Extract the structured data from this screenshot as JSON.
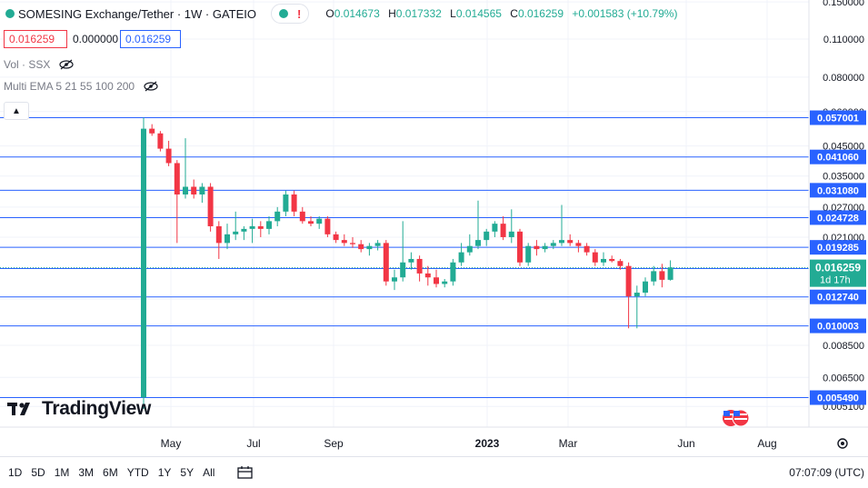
{
  "header": {
    "symbol": "SOMESING Exchange/Tether · 1W · GATEIO",
    "alert_icon": "!",
    "ohlc": {
      "o_label": "O",
      "o": "0.014673",
      "h_label": "H",
      "h": "0.017332",
      "l_label": "L",
      "l": "0.014565",
      "c_label": "C",
      "c": "0.016259",
      "change": "+0.001583 (+10.79%)"
    }
  },
  "price_boxes": {
    "sell": "0.016259",
    "spread": "0.000000",
    "buy": "0.016259"
  },
  "indicators": {
    "volume": "Vol · SSX",
    "ema": "Multi EMA 5 21 55 100 200"
  },
  "brand": "TradingView",
  "bottom_bar": {
    "ranges": [
      "1D",
      "5D",
      "1M",
      "3M",
      "6M",
      "YTD",
      "1Y",
      "5Y",
      "All"
    ],
    "clock": "07:07:09 (UTC)"
  },
  "colors": {
    "up": "#22ab94",
    "down": "#f23645",
    "hline": "#2962ff",
    "axis_label_bg": "#2962ff"
  },
  "chart_data": {
    "type": "candlestick",
    "scale": "log",
    "y_axis_ticks": [
      "0.150000",
      "0.110000",
      "0.080000",
      "0.060000",
      "0.045000",
      "0.035000",
      "0.027000",
      "0.021000",
      "0.016250",
      "0.012500",
      "0.008500",
      "0.006500",
      "0.005100"
    ],
    "x_axis_labels": [
      "May",
      "Jul",
      "Sep",
      "2023",
      "Mar",
      "Jun",
      "Aug"
    ],
    "horizontal_lines": [
      "0.057001",
      "0.041060",
      "0.031080",
      "0.024728",
      "0.019285",
      "0.016156",
      "0.012740",
      "0.010003",
      "0.005490"
    ],
    "current_price": "0.016259",
    "countdown": "1d 17h",
    "candles": [
      [
        0.0055,
        0.057,
        0.005,
        0.052
      ],
      [
        0.052,
        0.054,
        0.049,
        0.05
      ],
      [
        0.05,
        0.051,
        0.043,
        0.044
      ],
      [
        0.044,
        0.047,
        0.038,
        0.039
      ],
      [
        0.039,
        0.04,
        0.02,
        0.03
      ],
      [
        0.03,
        0.048,
        0.029,
        0.032
      ],
      [
        0.032,
        0.034,
        0.029,
        0.03
      ],
      [
        0.03,
        0.033,
        0.028,
        0.032
      ],
      [
        0.032,
        0.033,
        0.022,
        0.023
      ],
      [
        0.023,
        0.024,
        0.0175,
        0.02
      ],
      [
        0.02,
        0.0235,
        0.019,
        0.0215
      ],
      [
        0.0215,
        0.026,
        0.0205,
        0.022
      ],
      [
        0.022,
        0.023,
        0.0205,
        0.0225
      ],
      [
        0.0225,
        0.0245,
        0.02,
        0.023
      ],
      [
        0.023,
        0.024,
        0.021,
        0.0225
      ],
      [
        0.0225,
        0.025,
        0.0215,
        0.024
      ],
      [
        0.024,
        0.027,
        0.023,
        0.026
      ],
      [
        0.026,
        0.031,
        0.025,
        0.03
      ],
      [
        0.03,
        0.031,
        0.025,
        0.026
      ],
      [
        0.026,
        0.027,
        0.0235,
        0.024
      ],
      [
        0.024,
        0.025,
        0.023,
        0.0235
      ],
      [
        0.0235,
        0.025,
        0.0225,
        0.0245
      ],
      [
        0.0245,
        0.025,
        0.021,
        0.0215
      ],
      [
        0.0215,
        0.022,
        0.02,
        0.0205
      ],
      [
        0.0205,
        0.0215,
        0.0195,
        0.02
      ],
      [
        0.02,
        0.021,
        0.0192,
        0.0198
      ],
      [
        0.0198,
        0.0205,
        0.0185,
        0.019
      ],
      [
        0.019,
        0.02,
        0.018,
        0.0195
      ],
      [
        0.0195,
        0.0205,
        0.0188,
        0.02
      ],
      [
        0.02,
        0.0205,
        0.014,
        0.0145
      ],
      [
        0.0145,
        0.016,
        0.0135,
        0.015
      ],
      [
        0.015,
        0.024,
        0.0145,
        0.017
      ],
      [
        0.017,
        0.0185,
        0.016,
        0.0175
      ],
      [
        0.0175,
        0.018,
        0.0145,
        0.0155
      ],
      [
        0.0155,
        0.0165,
        0.014,
        0.015
      ],
      [
        0.015,
        0.016,
        0.0138,
        0.0142
      ],
      [
        0.0142,
        0.0148,
        0.0138,
        0.0145
      ],
      [
        0.0145,
        0.0175,
        0.014,
        0.017
      ],
      [
        0.017,
        0.02,
        0.0165,
        0.0185
      ],
      [
        0.0185,
        0.0215,
        0.018,
        0.0195
      ],
      [
        0.0195,
        0.0285,
        0.019,
        0.0205
      ],
      [
        0.0205,
        0.0225,
        0.0195,
        0.022
      ],
      [
        0.022,
        0.024,
        0.021,
        0.0235
      ],
      [
        0.0235,
        0.025,
        0.0205,
        0.021
      ],
      [
        0.021,
        0.0265,
        0.02,
        0.022
      ],
      [
        0.022,
        0.0225,
        0.0165,
        0.017
      ],
      [
        0.017,
        0.02,
        0.0165,
        0.0195
      ],
      [
        0.0195,
        0.0205,
        0.018,
        0.019
      ],
      [
        0.019,
        0.02,
        0.0185,
        0.0195
      ],
      [
        0.0195,
        0.0205,
        0.019,
        0.02
      ],
      [
        0.02,
        0.0275,
        0.0195,
        0.0205
      ],
      [
        0.0205,
        0.0215,
        0.0195,
        0.02
      ],
      [
        0.02,
        0.0205,
        0.0185,
        0.0195
      ],
      [
        0.0195,
        0.02,
        0.018,
        0.0185
      ],
      [
        0.0185,
        0.019,
        0.0165,
        0.017
      ],
      [
        0.017,
        0.0185,
        0.0165,
        0.0175
      ],
      [
        0.0175,
        0.018,
        0.017,
        0.0172
      ],
      [
        0.0172,
        0.0175,
        0.016,
        0.0165
      ],
      [
        0.0165,
        0.017,
        0.0098,
        0.0128
      ],
      [
        0.0128,
        0.014,
        0.0098,
        0.0132
      ],
      [
        0.0132,
        0.015,
        0.0128,
        0.0145
      ],
      [
        0.0145,
        0.0165,
        0.014,
        0.0158
      ],
      [
        0.0158,
        0.0168,
        0.0138,
        0.0147
      ],
      [
        0.0147,
        0.0173,
        0.0146,
        0.0163
      ]
    ]
  }
}
